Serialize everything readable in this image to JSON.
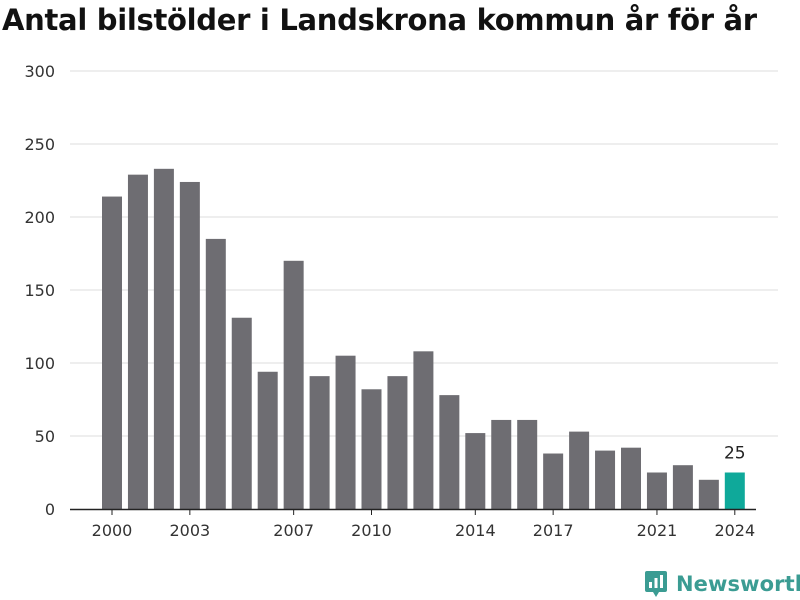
{
  "header": {
    "title": "Antal bilstölder i Landskrona kommun år för år"
  },
  "brand": {
    "name": "Newsworthy"
  },
  "colors": {
    "bar": "#6e6d72",
    "highlight": "#0fa99a",
    "grid": "#dddddd",
    "axis": "#222222",
    "brand": "#3b9c93"
  },
  "chart_data": {
    "type": "bar",
    "title": "Antal bilstölder i Landskrona kommun år för år",
    "xlabel": "",
    "ylabel": "",
    "ylim": [
      0,
      300
    ],
    "yticks": [
      0,
      50,
      100,
      150,
      200,
      250,
      300
    ],
    "xticks": [
      2000,
      2003,
      2007,
      2010,
      2014,
      2017,
      2021,
      2024
    ],
    "grid": true,
    "categories": [
      2000,
      2001,
      2002,
      2003,
      2004,
      2005,
      2006,
      2007,
      2008,
      2009,
      2010,
      2011,
      2012,
      2013,
      2014,
      2015,
      2016,
      2017,
      2018,
      2019,
      2020,
      2021,
      2022,
      2023,
      2024
    ],
    "values": [
      214,
      229,
      233,
      224,
      185,
      131,
      94,
      170,
      91,
      105,
      82,
      91,
      108,
      78,
      52,
      61,
      61,
      38,
      53,
      40,
      42,
      25,
      30,
      20,
      25
    ],
    "highlight": {
      "category": 2024,
      "label": "25"
    }
  }
}
